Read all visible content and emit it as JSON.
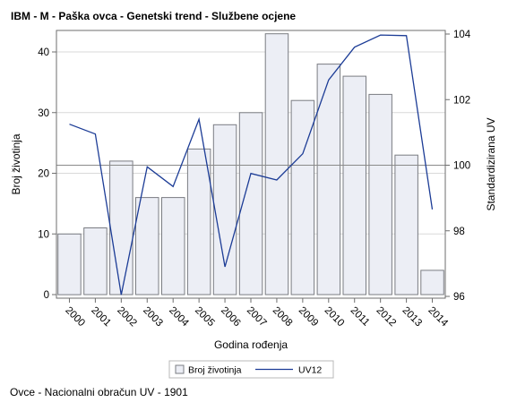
{
  "title": "IBM - M - Paška ovca - Genetski trend - Službene ocjene",
  "footnote": "Ovce - Nacionalni obračun UV - 1901",
  "colors": {
    "bar_fill": "#eceef5",
    "bar_stroke": "#7a7c82",
    "line": "#1c3c96",
    "grid": "#d9d9d9",
    "refline": "#8a8a8a",
    "axis": "#6e6e6e",
    "text": "#000000"
  },
  "chart_data": {
    "type": "bar",
    "categories": [
      "2000",
      "2001",
      "2002",
      "2003",
      "2004",
      "2005",
      "2006",
      "2007",
      "2008",
      "2009",
      "2010",
      "2011",
      "2012",
      "2013",
      "2014"
    ],
    "xlabel": "Godina rođenja",
    "ylabel": "Broj životinja",
    "y2label": "Standardizirana UV",
    "ylim": [
      0,
      44
    ],
    "y2lim": [
      96,
      104.2
    ],
    "yticks": [
      0,
      10,
      20,
      30,
      40
    ],
    "y2ticks": [
      96,
      98,
      100,
      102,
      104
    ],
    "series": [
      {
        "name": "Broj životinja",
        "type": "bar",
        "axis": "left",
        "values": [
          10,
          11,
          22,
          16,
          16,
          24,
          28,
          30,
          43,
          32,
          38,
          36,
          33,
          23,
          4
        ]
      },
      {
        "name": "UV12",
        "type": "line",
        "axis": "right",
        "values": [
          101.25,
          100.95,
          96.05,
          99.95,
          99.35,
          101.4,
          96.9,
          99.75,
          99.55,
          100.35,
          102.6,
          103.6,
          103.97,
          103.95,
          98.65
        ]
      }
    ],
    "reference_lines": [
      {
        "axis": "right",
        "value": 100
      }
    ],
    "grid": true,
    "legend_position": "bottom-center"
  }
}
